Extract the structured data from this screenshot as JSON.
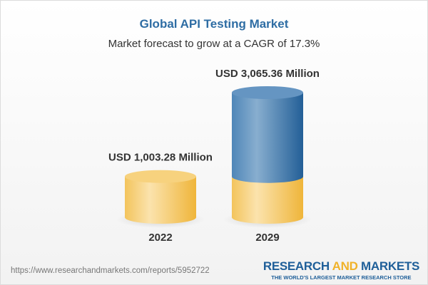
{
  "title": "Global API Testing Market",
  "subtitle": "Market forecast to grow at a CAGR of 17.3%",
  "chart_data": {
    "type": "bar",
    "style": "3d-cylinder",
    "categories": [
      "2022",
      "2029"
    ],
    "values": [
      1003.28,
      3065.36
    ],
    "data_labels": [
      "USD 1,003.28 Million",
      "USD 3,065.36 Million"
    ],
    "colors": {
      "base": "#f2c04e",
      "growth": "#3a74aa"
    },
    "grid": false
  },
  "footer": {
    "url": "https://www.researchandmarkets.com/reports/5952722",
    "logo_research": "RESEARCH",
    "logo_and": "AND",
    "logo_markets": "MARKETS",
    "logo_tagline": "THE WORLD'S LARGEST MARKET RESEARCH STORE"
  }
}
